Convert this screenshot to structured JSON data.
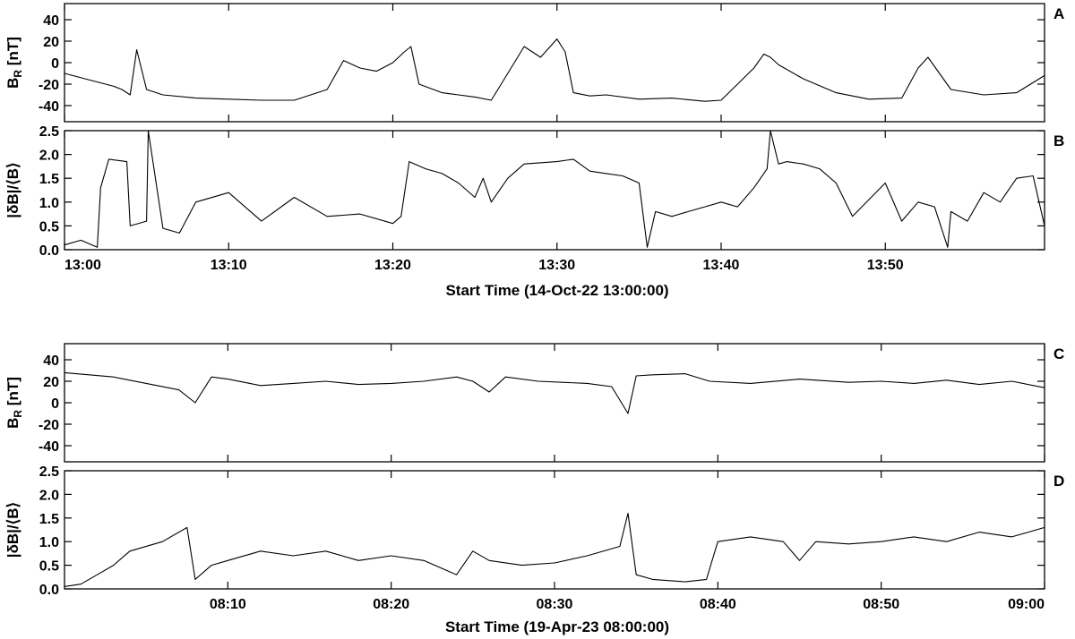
{
  "figure": {
    "blocks": [
      {
        "start_time_label": "Start Time (14-Oct-22 13:00:00)",
        "x_tick_labels": [
          "13:00",
          "13:10",
          "13:20",
          "13:30",
          "13:40",
          "13:50"
        ]
      },
      {
        "start_time_label": "Start Time (19-Apr-23 08:00:00)",
        "x_tick_labels": [
          "08:10",
          "08:20",
          "08:30",
          "08:40",
          "08:50",
          "09:00"
        ]
      }
    ]
  },
  "chart_data": [
    {
      "type": "line",
      "panel": "A",
      "ylabel": "B_R [nT]",
      "ylim": [
        -55,
        55
      ],
      "yticks": [
        40,
        20,
        0,
        -20,
        -40
      ],
      "xlabel": "Start Time (14-Oct-22 13:00:00)",
      "xlim_minutes": [
        0,
        59.7
      ],
      "x": [
        0,
        2,
        3,
        3.5,
        4,
        4.4,
        5,
        6,
        8,
        10,
        12,
        14,
        16,
        17,
        18,
        19,
        20,
        20.7,
        21.1,
        21.6,
        23,
        25,
        26,
        27,
        28,
        29,
        30,
        30.5,
        31,
        32,
        33,
        35,
        37,
        39,
        40,
        41,
        42,
        42.6,
        43,
        43.5,
        45,
        47,
        49,
        51,
        52,
        52.6,
        54,
        56,
        58,
        59.7
      ],
      "y": [
        -10,
        -18,
        -22,
        -25,
        -30,
        12,
        -25,
        -30,
        -33,
        -34,
        -35,
        -35,
        -25,
        2,
        -5,
        -8,
        0,
        10,
        15,
        -20,
        -28,
        -32,
        -35,
        -10,
        15,
        5,
        22,
        10,
        -28,
        -31,
        -30,
        -34,
        -33,
        -36,
        -35,
        -20,
        -5,
        8,
        5,
        -2,
        -15,
        -28,
        -34,
        -33,
        -5,
        5,
        -25,
        -30,
        -28,
        -12
      ],
      "annotations": [
        "A"
      ]
    },
    {
      "type": "line",
      "panel": "B",
      "ylabel": "|δB|/⟨B⟩",
      "ylim": [
        0,
        2.5
      ],
      "yticks": [
        0.0,
        0.5,
        1.0,
        1.5,
        2.0,
        2.5
      ],
      "xlabel": "Start Time (14-Oct-22 13:00:00)",
      "xlim_minutes": [
        0,
        59.7
      ],
      "x": [
        0,
        1,
        2,
        2.2,
        2.7,
        3.8,
        4,
        5,
        5.1,
        6,
        7,
        8,
        10,
        12,
        14,
        16,
        18,
        20,
        20.5,
        21,
        22,
        23,
        24,
        25,
        25.5,
        26,
        27,
        28,
        30,
        31,
        32,
        33,
        34,
        35,
        35.5,
        36,
        37,
        38,
        39,
        40,
        41,
        42,
        42.8,
        43,
        43.5,
        44,
        45,
        46,
        47,
        48,
        50,
        51,
        52,
        53,
        53.8,
        54,
        55,
        56,
        57,
        58,
        59,
        59.7
      ],
      "y": [
        0.1,
        0.2,
        0.05,
        1.3,
        1.9,
        1.85,
        0.5,
        0.6,
        2.5,
        0.45,
        0.35,
        1.0,
        1.2,
        0.6,
        1.1,
        0.7,
        0.75,
        0.55,
        0.7,
        1.85,
        1.7,
        1.6,
        1.4,
        1.1,
        1.5,
        1.0,
        1.5,
        1.8,
        1.85,
        1.9,
        1.65,
        1.6,
        1.55,
        1.4,
        0.05,
        0.8,
        0.7,
        0.8,
        0.9,
        1.0,
        0.9,
        1.3,
        1.7,
        2.5,
        1.8,
        1.85,
        1.8,
        1.7,
        1.4,
        0.7,
        1.4,
        0.6,
        1.0,
        0.9,
        0.05,
        0.8,
        0.6,
        1.2,
        1.0,
        1.5,
        1.55,
        0.5
      ],
      "annotations": [
        "B"
      ]
    },
    {
      "type": "line",
      "panel": "C",
      "ylabel": "B_R [nT]",
      "ylim": [
        -55,
        55
      ],
      "yticks": [
        40,
        20,
        0,
        -20,
        -40
      ],
      "xlabel": "Start Time (19-Apr-23 08:00:00)",
      "xlim_minutes": [
        0,
        60
      ],
      "x": [
        0,
        3,
        5,
        7,
        8,
        9,
        10,
        12,
        14,
        16,
        18,
        20,
        22,
        24,
        25,
        26,
        27,
        29,
        32,
        33.5,
        34.5,
        35,
        36,
        38,
        39.5,
        42,
        45,
        48,
        50,
        52,
        54,
        56,
        58,
        60
      ],
      "y": [
        28,
        24,
        18,
        12,
        0,
        24,
        22,
        16,
        18,
        20,
        17,
        18,
        20,
        24,
        20,
        10,
        24,
        20,
        18,
        15,
        -10,
        25,
        26,
        27,
        20,
        18,
        22,
        19,
        20,
        18,
        21,
        17,
        20,
        14
      ],
      "annotations": [
        "C"
      ]
    },
    {
      "type": "line",
      "panel": "D",
      "ylabel": "|δB|/⟨B⟩",
      "ylim": [
        0,
        2.5
      ],
      "yticks": [
        0.0,
        0.5,
        1.0,
        1.5,
        2.0,
        2.5
      ],
      "xlabel": "Start Time (19-Apr-23 08:00:00)",
      "xlim_minutes": [
        0,
        60
      ],
      "x": [
        0,
        1,
        2,
        3,
        4,
        6,
        7.5,
        8,
        9,
        10,
        12,
        14,
        16,
        18,
        20,
        22,
        24,
        25,
        26,
        28,
        30,
        32,
        34,
        34.5,
        35,
        36,
        38,
        39.3,
        40,
        42,
        44,
        45,
        46,
        48,
        50,
        52,
        54,
        56,
        58,
        60
      ],
      "y": [
        0.05,
        0.1,
        0.3,
        0.5,
        0.8,
        1.0,
        1.3,
        0.2,
        0.5,
        0.6,
        0.8,
        0.7,
        0.8,
        0.6,
        0.7,
        0.6,
        0.3,
        0.8,
        0.6,
        0.5,
        0.55,
        0.7,
        0.9,
        1.6,
        0.3,
        0.2,
        0.15,
        0.2,
        1.0,
        1.1,
        1.0,
        0.6,
        1.0,
        0.95,
        1.0,
        1.1,
        1.0,
        1.2,
        1.1,
        1.3
      ],
      "annotations": [
        "D"
      ]
    }
  ]
}
